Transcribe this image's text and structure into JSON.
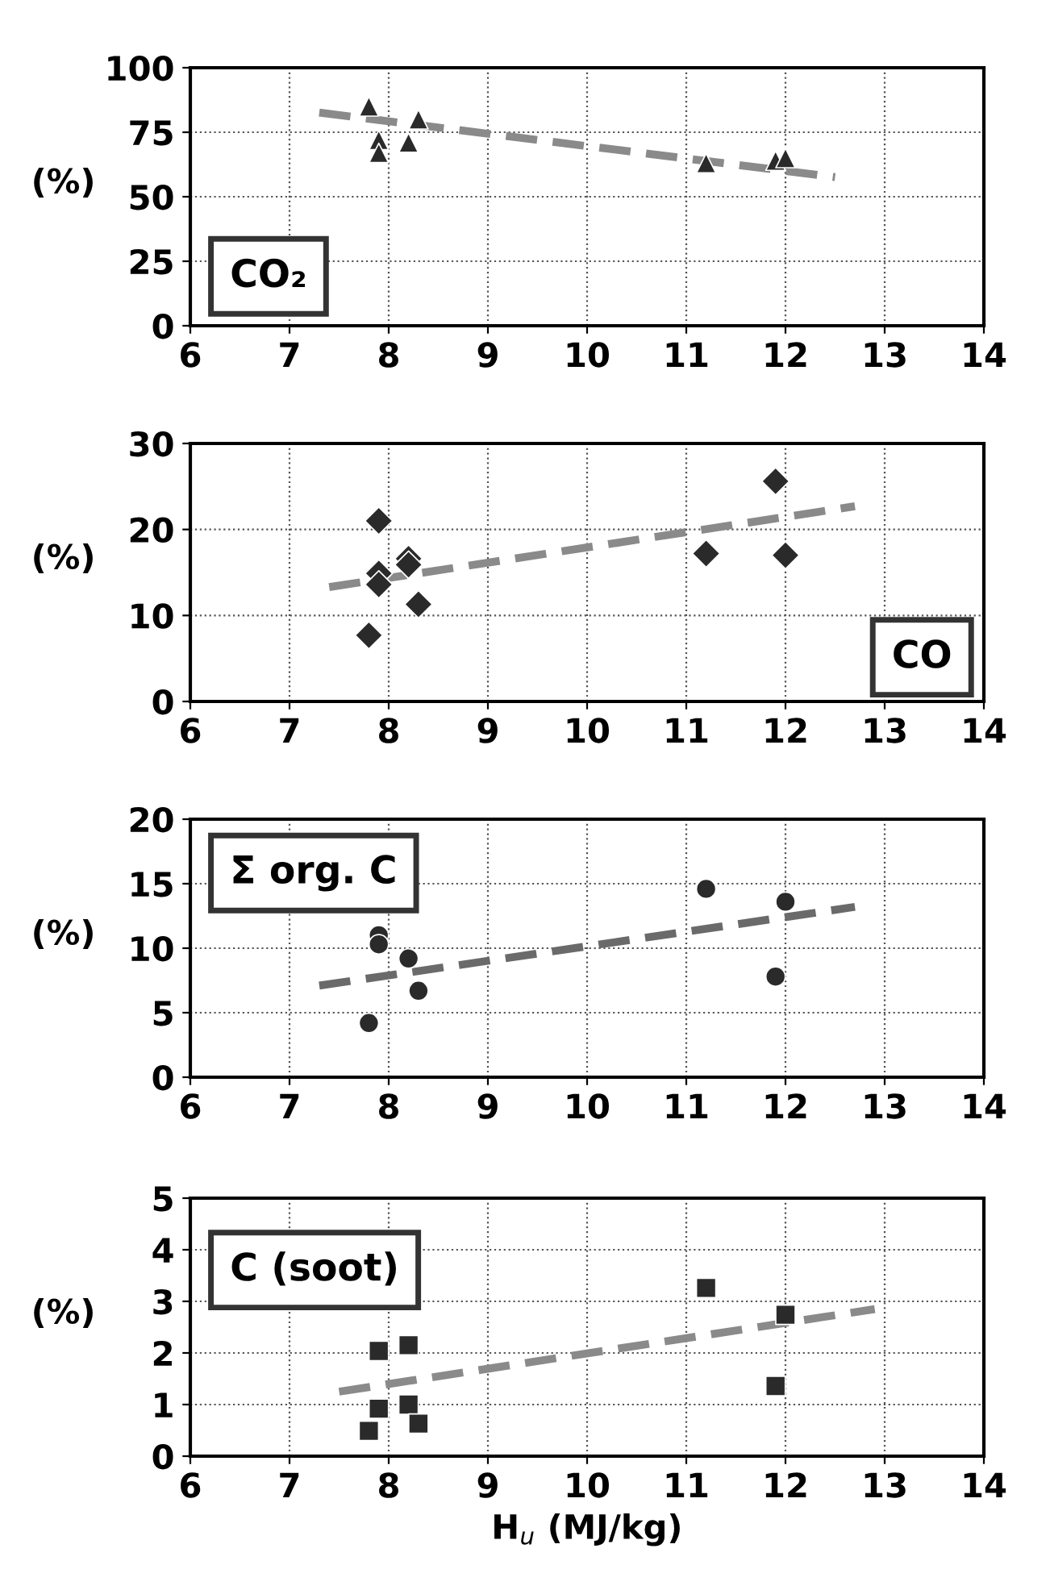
{
  "chart_data": [
    {
      "type": "scatter",
      "title": "CO₂",
      "ylabel": "(%)",
      "xlim": [
        6,
        14
      ],
      "xticks": [
        6,
        7,
        8,
        9,
        10,
        11,
        12,
        13,
        14
      ],
      "ylim": [
        0,
        100
      ],
      "yticks": [
        0,
        25,
        50,
        75,
        100
      ],
      "grid": true,
      "legend": false,
      "tick_labels": true,
      "series": [
        {
          "marker": "triangle",
          "color": "#2a2a2a",
          "x": [
            7.8,
            7.9,
            7.9,
            8.2,
            8.3,
            11.2,
            11.9,
            12.0
          ],
          "values": [
            85,
            72,
            67,
            71,
            80,
            63,
            64,
            65
          ]
        },
        {
          "type": "line",
          "marker": "none",
          "line_style": "dashed",
          "color": "#8a8a8a",
          "x": [
            7.3,
            12.5
          ],
          "values": [
            82.6,
            57.6
          ]
        }
      ]
    },
    {
      "type": "scatter",
      "title": "CO",
      "ylabel": "(%)",
      "xlim": [
        6,
        14
      ],
      "xticks": [
        6,
        7,
        8,
        9,
        10,
        11,
        12,
        13,
        14
      ],
      "ylim": [
        0,
        30
      ],
      "yticks": [
        0,
        10,
        20,
        30
      ],
      "grid": true,
      "legend": false,
      "series": [
        {
          "marker": "diamond",
          "color": "#2a2a2a",
          "x": [
            7.9,
            7.9,
            7.9,
            8.2,
            8.2,
            8.3,
            7.8,
            11.2,
            11.9,
            12.0
          ],
          "values": [
            21,
            14.9,
            13.6,
            16.6,
            15.9,
            11.3,
            7.7,
            17.2,
            25.6,
            17.0
          ]
        },
        {
          "type": "line",
          "marker": "none",
          "line_style": "dashed",
          "color": "#8a8a8a",
          "x": [
            7.4,
            12.7
          ],
          "values": [
            13.3,
            22.7
          ]
        }
      ]
    },
    {
      "type": "scatter",
      "title": "Σ org. C",
      "ylabel": "(%)",
      "xlim": [
        6,
        14
      ],
      "xticks": [
        6,
        7,
        8,
        9,
        10,
        11,
        12,
        13,
        14
      ],
      "ylim": [
        0,
        20
      ],
      "yticks": [
        0,
        5,
        10,
        15,
        20
      ],
      "grid": true,
      "legend": false,
      "series": [
        {
          "marker": "circle",
          "color": "#2a2a2a",
          "x": [
            7.9,
            7.9,
            8.2,
            8.3,
            7.8,
            11.2,
            12.0,
            11.9
          ],
          "values": [
            11.0,
            10.3,
            9.2,
            6.7,
            4.2,
            14.6,
            13.6,
            7.8
          ]
        },
        {
          "type": "line",
          "marker": "none",
          "line_style": "dashed",
          "color": "#6a6a6a",
          "x": [
            7.3,
            12.7
          ],
          "values": [
            7.1,
            13.2
          ]
        }
      ]
    },
    {
      "type": "scatter",
      "title": "C (soot)",
      "ylabel": "(%)",
      "xlabel": "H$_{u}$ (MJ/kg)",
      "xlim": [
        6,
        14
      ],
      "xticks": [
        6,
        7,
        8,
        9,
        10,
        11,
        12,
        13,
        14
      ],
      "ylim": [
        0,
        5
      ],
      "yticks": [
        0,
        1,
        2,
        3,
        4,
        5
      ],
      "grid": true,
      "legend": false,
      "series": [
        {
          "marker": "square",
          "color": "#2a2a2a",
          "x": [
            7.9,
            8.2,
            7.9,
            8.2,
            7.8,
            8.3,
            11.2,
            12.0,
            11.9
          ],
          "values": [
            2.04,
            2.15,
            0.92,
            1.0,
            0.49,
            0.63,
            3.26,
            2.74,
            1.36
          ]
        },
        {
          "type": "line",
          "marker": "none",
          "line_style": "dashed",
          "color": "#8a8a8a",
          "x": [
            7.5,
            12.9
          ],
          "values": [
            1.25,
            2.85
          ]
        }
      ]
    }
  ]
}
